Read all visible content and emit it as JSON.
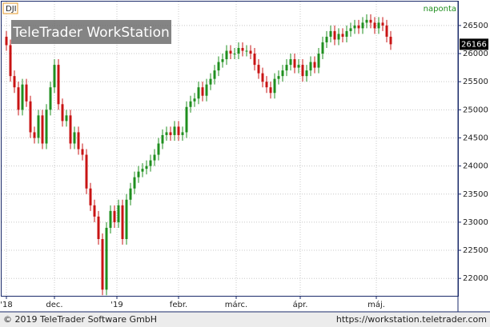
{
  "chart_data": {
    "type": "candlestick",
    "symbol": "DJI",
    "period": "naponta",
    "watermark": "TeleTrader WorkStation",
    "copyright": "© 2019 TeleTrader Software GmbH",
    "url": "https://workstation.teletrader.com",
    "up_color": "#1f8f1f",
    "down_color": "#c81414",
    "grid": true,
    "xlim": [
      -1.2,
      112.8
    ],
    "ylim": [
      21690,
      26925
    ],
    "xticks": [
      {
        "value": 0,
        "label": "'18"
      },
      {
        "value": 12,
        "label": "dec."
      },
      {
        "value": 27.6,
        "label": "'19"
      },
      {
        "value": 43,
        "label": "febr."
      },
      {
        "value": 57.4,
        "label": "márc."
      },
      {
        "value": 73.4,
        "label": "ápr."
      },
      {
        "value": 92.4,
        "label": "máj."
      }
    ],
    "yticks": [
      22000,
      22500,
      23000,
      23500,
      24000,
      24500,
      25000,
      25500,
      26000,
      26500
    ],
    "last": 26166,
    "open": [
      26300,
      26150,
      25600,
      25400,
      25000,
      25450,
      25150,
      24600,
      24500,
      24900,
      24400,
      25000,
      25400,
      25800,
      25100,
      24800,
      24900,
      24400,
      24600,
      24300,
      24200,
      23600,
      23300,
      23100,
      22700,
      21800,
      22900,
      23200,
      23000,
      23300,
      22700,
      23400,
      23600,
      23800,
      23900,
      23950,
      24000,
      24100,
      24200,
      24400,
      24550,
      24600,
      24550,
      24700,
      24550,
      24600,
      25050,
      25150,
      25200,
      25400,
      25250,
      25450,
      25550,
      25700,
      25850,
      25900,
      26050,
      26000,
      26000,
      26100,
      26050,
      26050,
      26000,
      25800,
      25650,
      25500,
      25400,
      25300,
      25550,
      25600,
      25700,
      25800,
      25900,
      25750,
      25800,
      25600,
      25700,
      25850,
      25750,
      26000,
      26200,
      26300,
      26400,
      26250,
      26350,
      26300,
      26400,
      26450,
      26500,
      26450,
      26550,
      26600,
      26550,
      26450,
      26550,
      26500,
      26300
    ],
    "high": [
      26400,
      26250,
      25700,
      25500,
      25550,
      25550,
      25250,
      24700,
      25000,
      25000,
      25100,
      25500,
      25900,
      25900,
      25200,
      25000,
      25000,
      24700,
      24700,
      24400,
      24300,
      23700,
      23400,
      23200,
      22800,
      23000,
      23300,
      23300,
      23400,
      23400,
      23500,
      23700,
      23900,
      24000,
      24050,
      24100,
      24200,
      24300,
      24500,
      24650,
      24700,
      24700,
      24800,
      24800,
      24700,
      25150,
      25250,
      25300,
      25500,
      25500,
      25550,
      25650,
      25800,
      25950,
      26000,
      26150,
      26150,
      26100,
      26200,
      26200,
      26150,
      26150,
      26100,
      25900,
      25750,
      25600,
      25500,
      25650,
      25700,
      25800,
      25900,
      26000,
      26000,
      25900,
      25900,
      25800,
      25950,
      25950,
      26100,
      26300,
      26400,
      26500,
      26500,
      26450,
      26450,
      26500,
      26550,
      26600,
      26600,
      26650,
      26700,
      26700,
      26650,
      26650,
      26650,
      26600,
      26400
    ],
    "low": [
      26050,
      25500,
      25300,
      24900,
      24900,
      25050,
      24500,
      24400,
      24400,
      24300,
      24300,
      24900,
      25300,
      25000,
      24700,
      24700,
      24300,
      24300,
      24200,
      24100,
      23500,
      23200,
      23000,
      22600,
      21700,
      21700,
      22800,
      22900,
      22900,
      22600,
      22600,
      23300,
      23500,
      23700,
      23800,
      23850,
      23900,
      24000,
      24100,
      24300,
      24450,
      24450,
      24450,
      24450,
      24450,
      24500,
      24950,
      25050,
      25100,
      25150,
      25150,
      25350,
      25450,
      25600,
      25750,
      25800,
      25900,
      25900,
      25900,
      25950,
      25950,
      25900,
      25700,
      25550,
      25400,
      25300,
      25200,
      25200,
      25450,
      25500,
      25600,
      25700,
      25650,
      25650,
      25500,
      25500,
      25600,
      25650,
      25650,
      25900,
      26100,
      26200,
      26150,
      26150,
      26200,
      26200,
      26300,
      26350,
      26350,
      26350,
      26450,
      26450,
      26350,
      26350,
      26400,
      26200,
      26066
    ],
    "close": [
      26150,
      25600,
      25400,
      25000,
      25450,
      25150,
      24600,
      24500,
      24900,
      24400,
      25000,
      25400,
      25800,
      25100,
      24800,
      24900,
      24400,
      24600,
      24300,
      24200,
      23600,
      23300,
      23100,
      22700,
      21800,
      22900,
      23200,
      23000,
      23300,
      22700,
      23400,
      23600,
      23800,
      23900,
      23950,
      24000,
      24100,
      24200,
      24400,
      24550,
      24600,
      24550,
      24700,
      24550,
      24600,
      25050,
      25150,
      25200,
      25400,
      25250,
      25450,
      25550,
      25700,
      25850,
      25900,
      26050,
      26000,
      26000,
      26100,
      26050,
      26050,
      26000,
      25800,
      25650,
      25500,
      25400,
      25300,
      25550,
      25600,
      25700,
      25800,
      25900,
      25750,
      25800,
      25600,
      25700,
      25850,
      25750,
      26000,
      26200,
      26300,
      26400,
      26250,
      26350,
      26300,
      26400,
      26450,
      26500,
      26450,
      26550,
      26600,
      26550,
      26450,
      26550,
      26500,
      26300,
      26166
    ]
  }
}
